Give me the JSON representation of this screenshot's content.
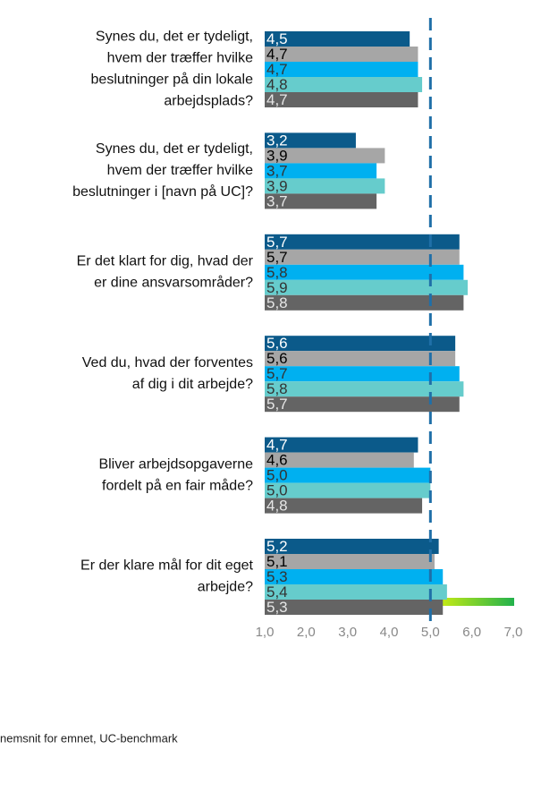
{
  "chart_data": {
    "type": "bar",
    "orientation": "horizontal",
    "categories": [
      [
        "Synes du, det er tydeligt,",
        "hvem der træffer hvilke",
        "beslutninger på din lokale",
        "arbejdsplads?"
      ],
      [
        "Synes du, det er tydeligt,",
        "hvem der træffer hvilke",
        "beslutninger i [navn på UC]?"
      ],
      [
        "Er det klart for dig, hvad der",
        "er dine ansvarsområder?"
      ],
      [
        "Ved du, hvad der forventes",
        "af dig i dit arbejde?"
      ],
      [
        "Bliver arbejdsopgaverne",
        "fordelt på en fair måde?"
      ],
      [
        "Er der klare mål for dit eget",
        "arbejde?"
      ]
    ],
    "series": [
      {
        "color": "#0b5a8a",
        "label_color": "#ffffff",
        "values": [
          4.5,
          3.2,
          5.7,
          5.6,
          4.7,
          5.2
        ],
        "value_labels": [
          "4,5",
          "3,2",
          "5,7",
          "5,6",
          "4,7",
          "5,2"
        ]
      },
      {
        "color": "#a6a6a6",
        "label_color": "#000000",
        "values": [
          4.7,
          3.9,
          5.7,
          5.6,
          4.6,
          5.1
        ],
        "value_labels": [
          "4,7",
          "3,9",
          "5,7",
          "5,6",
          "4,6",
          "5,1"
        ]
      },
      {
        "color": "#00b0f0",
        "label_color": "#333333",
        "values": [
          4.7,
          3.7,
          5.8,
          5.7,
          5.0,
          5.3
        ],
        "value_labels": [
          "4,7",
          "3,7",
          "5,8",
          "5,7",
          "5,0",
          "5,3"
        ]
      },
      {
        "color": "#66cccc",
        "label_color": "#333333",
        "values": [
          4.8,
          3.9,
          5.9,
          5.8,
          5.0,
          5.4
        ],
        "value_labels": [
          "4,8",
          "3,9",
          "5,9",
          "5,8",
          "5,0",
          "5,4"
        ]
      },
      {
        "color": "#646464",
        "label_color": "#e6e6e6",
        "values": [
          4.7,
          3.7,
          5.8,
          5.7,
          4.8,
          5.3
        ],
        "value_labels": [
          "4,7",
          "3,7",
          "5,8",
          "5,7",
          "4,8",
          "5,3"
        ]
      }
    ],
    "xlim": [
      1,
      7
    ],
    "xticks": [
      {
        "value": 1,
        "label": "1,0"
      },
      {
        "value": 2,
        "label": "2,0"
      },
      {
        "value": 3,
        "label": "3,0"
      },
      {
        "value": 4,
        "label": "4,0"
      },
      {
        "value": 5,
        "label": "5,0"
      },
      {
        "value": 6,
        "label": "6,0"
      },
      {
        "value": 7,
        "label": "7,0"
      }
    ],
    "reference_line": 5,
    "reference_color": "#1f6fa8",
    "footnote": "nemsnit for emnet, UC-benchmark"
  }
}
